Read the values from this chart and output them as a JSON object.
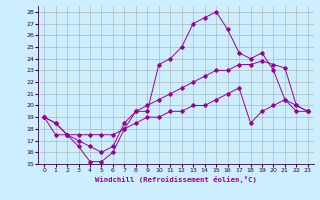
{
  "xlabel": "Windchill (Refroidissement éolien,°C)",
  "bg_color": "#cceeff",
  "line_color": "#990099",
  "grid_color": "#aabbbb",
  "xlim": [
    -0.5,
    23.5
  ],
  "ylim": [
    15,
    28.5
  ],
  "xticks": [
    0,
    1,
    2,
    3,
    4,
    5,
    6,
    7,
    8,
    9,
    10,
    11,
    12,
    13,
    14,
    15,
    16,
    17,
    18,
    19,
    20,
    21,
    22,
    23
  ],
  "yticks": [
    15,
    16,
    17,
    18,
    19,
    20,
    21,
    22,
    23,
    24,
    25,
    26,
    27,
    28
  ],
  "lines": [
    {
      "x": [
        0,
        1,
        2,
        3,
        4,
        5,
        6,
        7,
        8,
        9,
        10,
        11,
        12,
        13,
        14,
        15,
        16,
        17,
        18,
        19,
        20,
        21,
        22,
        23
      ],
      "y": [
        19,
        18.5,
        17.5,
        16.5,
        15.2,
        15.2,
        16,
        18,
        19.5,
        19.5,
        23.5,
        24,
        25,
        27,
        27.5,
        28,
        26.5,
        24.5,
        24,
        24.5,
        23,
        20.5,
        19.5,
        19.5
      ]
    },
    {
      "x": [
        0,
        1,
        2,
        3,
        4,
        5,
        6,
        7,
        8,
        9,
        10,
        11,
        12,
        13,
        14,
        15,
        16,
        17,
        18,
        19,
        20,
        21,
        22,
        23
      ],
      "y": [
        19,
        18.5,
        17.5,
        17,
        16.5,
        16,
        16.5,
        18.5,
        19.5,
        20,
        20.5,
        21,
        21.5,
        22,
        22.5,
        23,
        23,
        23.5,
        23.5,
        23.8,
        23.5,
        23.2,
        20,
        19.5
      ]
    },
    {
      "x": [
        0,
        1,
        2,
        3,
        4,
        5,
        6,
        7,
        8,
        9,
        10,
        11,
        12,
        13,
        14,
        15,
        16,
        17,
        18,
        19,
        20,
        21,
        22,
        23
      ],
      "y": [
        19,
        17.5,
        17.5,
        17.5,
        17.5,
        17.5,
        17.5,
        18,
        18.5,
        19,
        19,
        19.5,
        19.5,
        20,
        20,
        20.5,
        21,
        21.5,
        18.5,
        19.5,
        20,
        20.5,
        20,
        19.5
      ]
    }
  ]
}
